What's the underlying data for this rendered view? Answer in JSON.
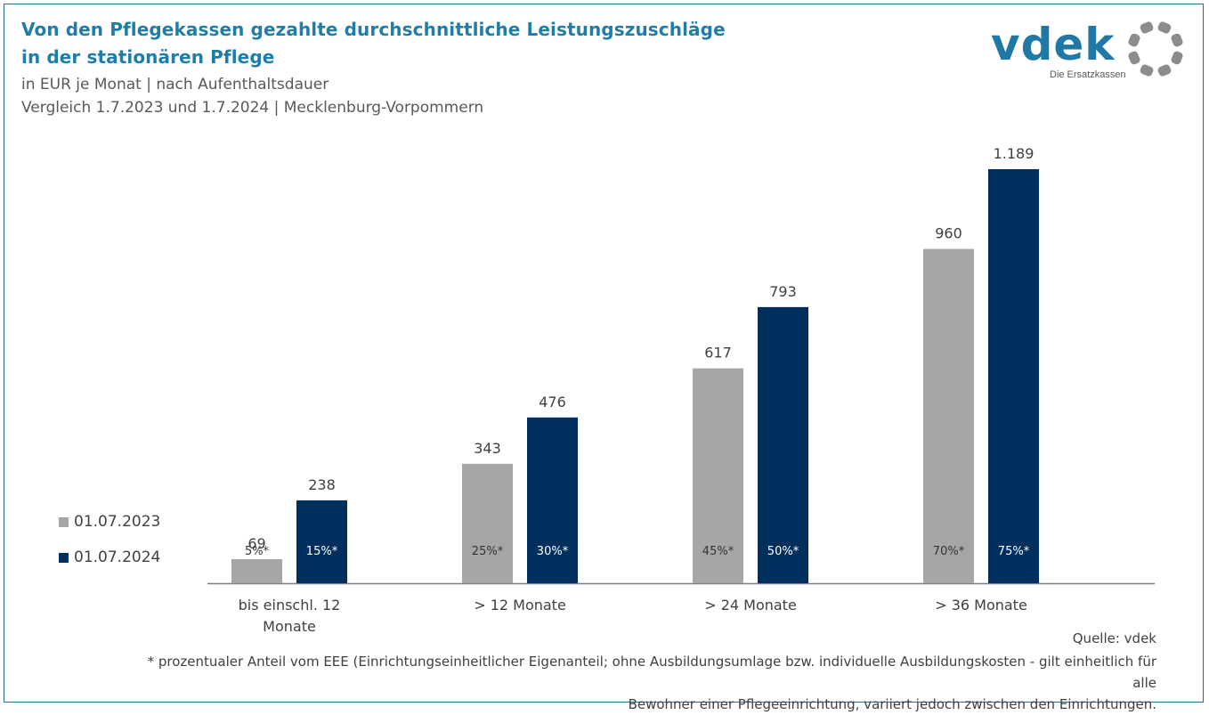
{
  "header": {
    "title_line1": "Von den Pflegekassen gezahlte durchschnittliche Leistungszuschläge",
    "title_line2": "in der stationären Pflege",
    "subtitle_line1": "in EUR je Monat | nach Aufenthaltsdauer",
    "subtitle_line2": "Vergleich 1.7.2023 und 1.7.2024 | Mecklenburg-Vorpommern"
  },
  "logo": {
    "wordmark": "vdek",
    "tagline": "Die Ersatzkassen",
    "ring_color": "#8c8c8c"
  },
  "colors": {
    "series_2023": "#a6a6a6",
    "series_2024": "#002f5e",
    "title": "#1f7ea8"
  },
  "chart_data": {
    "type": "bar",
    "categories": [
      [
        "bis einschl. 12",
        "Monate"
      ],
      [
        "> 12 Monate"
      ],
      [
        "> 24 Monate"
      ],
      [
        "> 36 Monate"
      ]
    ],
    "series": [
      {
        "name": "01.07.2023",
        "values": [
          69,
          343,
          617,
          960
        ],
        "value_labels": [
          "69",
          "343",
          "617",
          "960"
        ],
        "inner_labels": [
          "5%*",
          "25%*",
          "45%*",
          "70%*"
        ]
      },
      {
        "name": "01.07.2024",
        "values": [
          238,
          476,
          793,
          1189
        ],
        "value_labels": [
          "238",
          "476",
          "793",
          "1.189"
        ],
        "inner_labels": [
          "15%*",
          "30%*",
          "50%*",
          "75%*"
        ]
      }
    ],
    "ylim": [
      0,
      1189
    ],
    "grid": false,
    "legend": "left"
  },
  "footer": {
    "source": "Quelle: vdek",
    "footnote_line1": "* prozentualer Anteil vom EEE (Einrichtungseinheitlicher  Eigenanteil; ohne Ausbildungsumlage bzw. individuelle Ausbildungskosten - gilt einheitlich für alle",
    "footnote_line2": "Bewohner einer Pflegeeinrichtung, variiert jedoch zwischen den Einrichtungen."
  }
}
